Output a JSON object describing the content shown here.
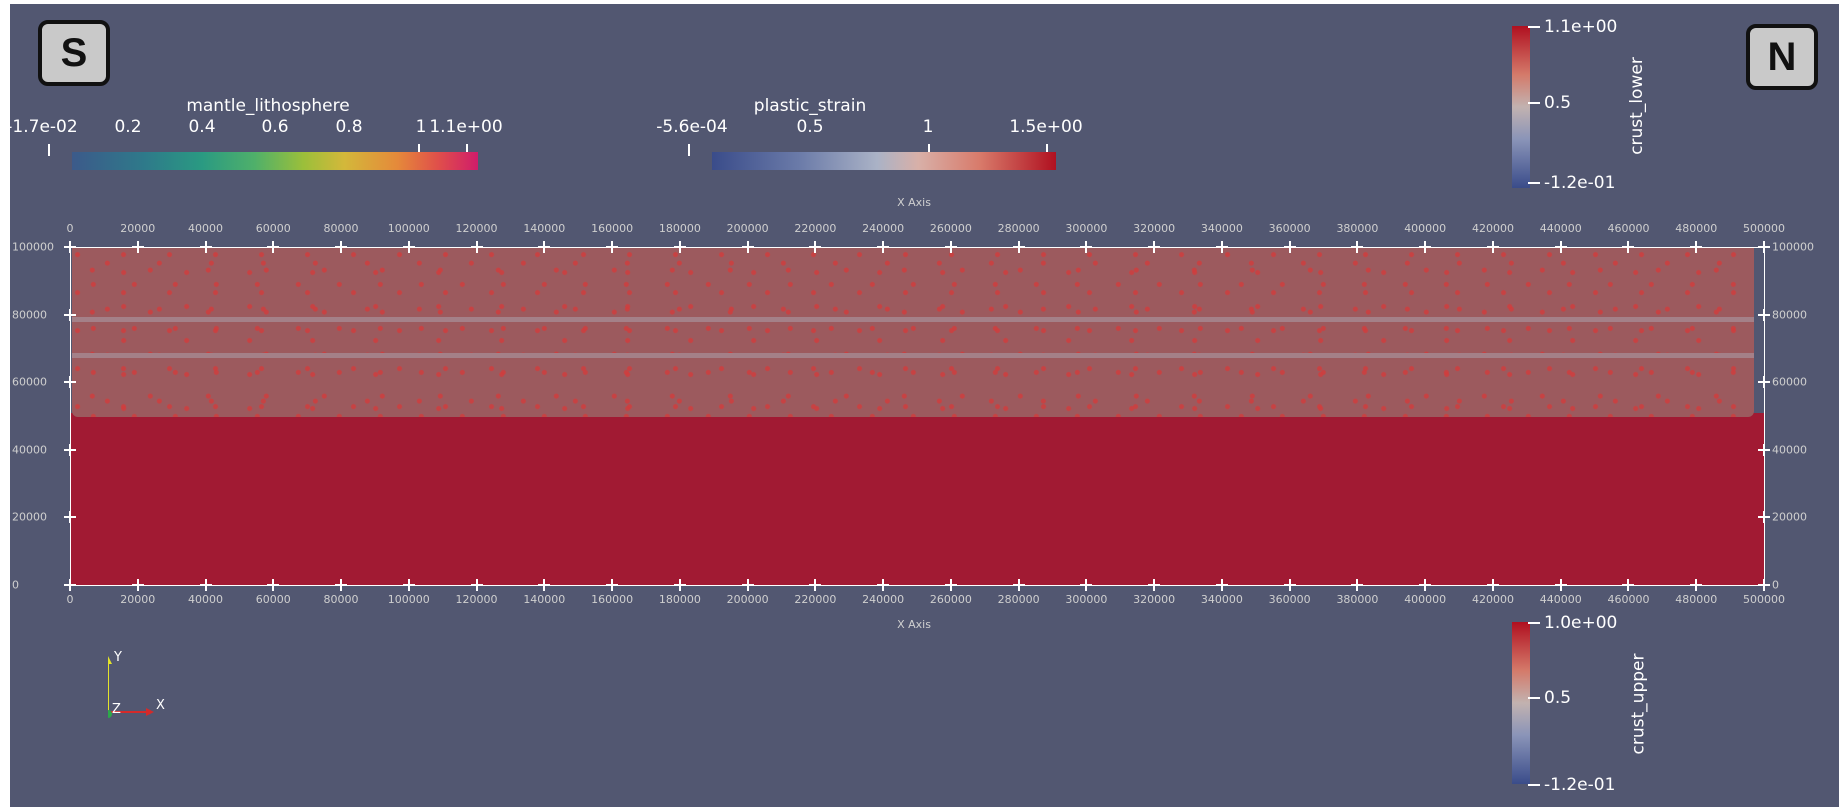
{
  "badges": {
    "left": "S",
    "right": "N"
  },
  "colorbars": {
    "mantle": {
      "title": "mantle_lithosphere",
      "labels": [
        "-1.7e-02",
        "0.2",
        "0.4",
        "0.6",
        "0.8",
        "1",
        "1.1e+00"
      ]
    },
    "strain": {
      "title": "plastic_strain",
      "labels": [
        "-5.6e-04",
        "0.5",
        "1",
        "1.5e+00"
      ]
    },
    "crust_lower": {
      "title": "crust_lower",
      "labels": [
        "1.1e+00",
        "0.5",
        "-1.2e-01"
      ]
    },
    "crust_upper": {
      "title": "crust_upper",
      "labels": [
        "1.0e+00",
        "0.5",
        "-1.2e-01"
      ]
    }
  },
  "axes": {
    "x_title": "X Axis",
    "x_ticks": [
      "0",
      "20000",
      "40000",
      "60000",
      "80000",
      "100000",
      "120000",
      "140000",
      "160000",
      "180000",
      "200000",
      "220000",
      "240000",
      "260000",
      "280000",
      "300000",
      "320000",
      "340000",
      "360000",
      "380000",
      "400000",
      "420000",
      "440000",
      "460000",
      "480000",
      "500000"
    ],
    "y_ticks": [
      "100000",
      "80000",
      "60000",
      "40000",
      "20000",
      "0"
    ]
  },
  "orientation": {
    "y": "Y",
    "z": "Z",
    "x": "X"
  }
}
